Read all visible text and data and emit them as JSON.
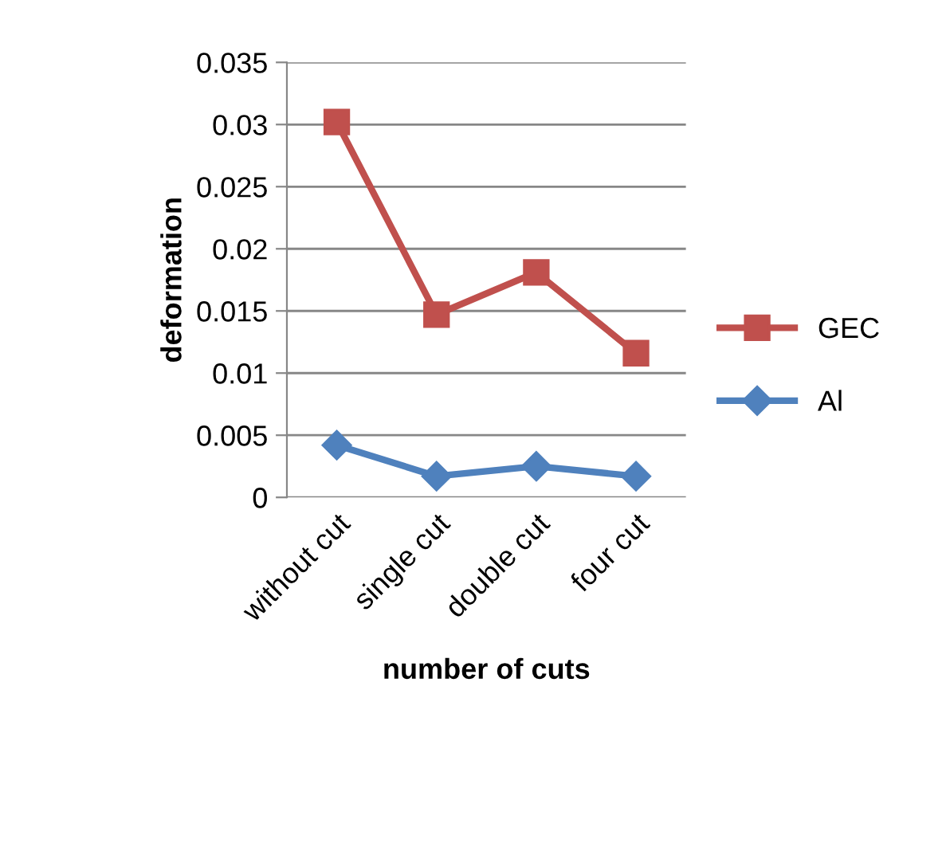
{
  "chart_data": {
    "type": "line",
    "xlabel": "number of cuts",
    "ylabel": "deformation",
    "categories": [
      "without cut",
      "single cut",
      "double cut",
      "four cut"
    ],
    "series": [
      {
        "name": "GEC",
        "color": "#c0504d",
        "marker": "square",
        "values": [
          0.0302,
          0.0147,
          0.0181,
          0.0116
        ]
      },
      {
        "name": "Al",
        "color": "#4f81bd",
        "marker": "diamond",
        "values": [
          0.0042,
          0.0017,
          0.0025,
          0.0017
        ]
      }
    ],
    "ylim": [
      0,
      0.035
    ],
    "yticks": [
      0,
      0.005,
      0.01,
      0.015,
      0.02,
      0.025,
      0.03,
      0.035
    ],
    "grid": "y",
    "legend": "right",
    "line_style": "solid"
  }
}
